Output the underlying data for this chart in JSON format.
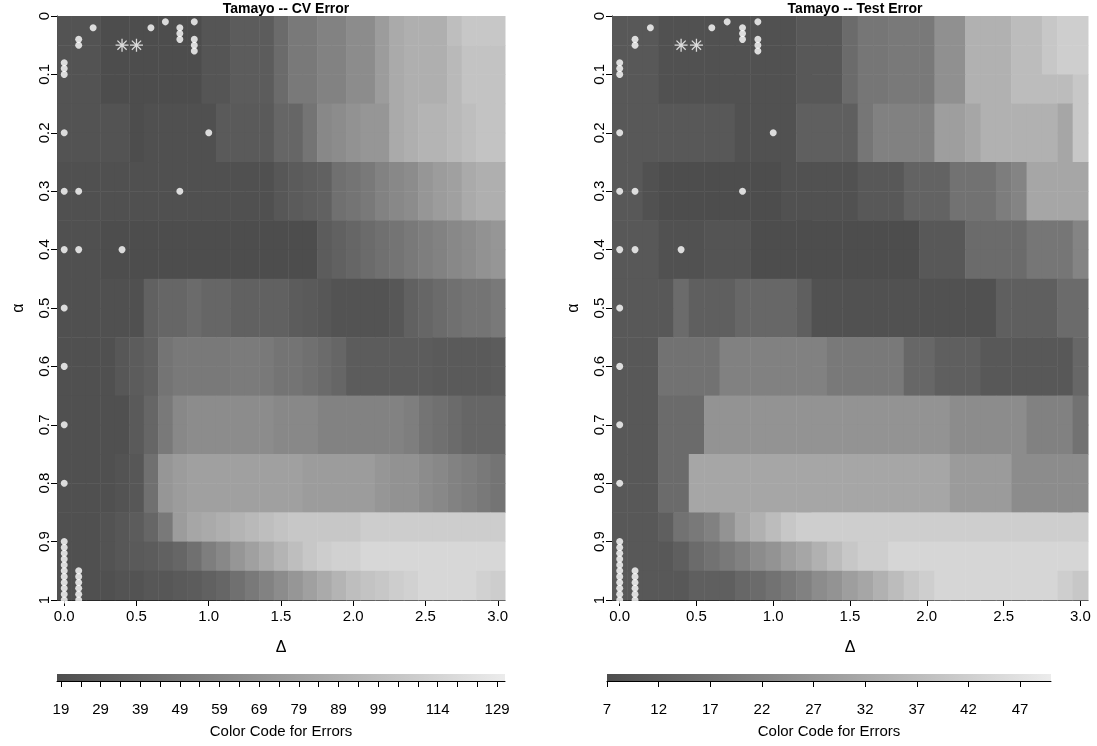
{
  "chart_data": [
    {
      "type": "heatmap",
      "title": "Tamayo -- CV Error",
      "xlabel": "Δ",
      "ylabel": "α",
      "clabel": "Color Code for Errors",
      "x": [
        0,
        0.1,
        0.2,
        0.3,
        0.4,
        0.5,
        0.6,
        0.7,
        0.8,
        0.9,
        1,
        1.1,
        1.2,
        1.3,
        1.4,
        1.5,
        1.6,
        1.7,
        1.8,
        1.9,
        2,
        2.1,
        2.2,
        2.3,
        2.4,
        2.5,
        2.6,
        2.7,
        2.8,
        2.9,
        3
      ],
      "xlim": [
        -0.05,
        3.05
      ],
      "xticks": [
        {
          "value": 0,
          "label": "0.0"
        },
        {
          "value": 0.5,
          "label": "0.5"
        },
        {
          "value": 1,
          "label": "1.0"
        },
        {
          "value": 1.5,
          "label": "1.5"
        },
        {
          "value": 2,
          "label": "2.0"
        },
        {
          "value": 2.5,
          "label": "2.5"
        },
        {
          "value": 3,
          "label": "3.0"
        }
      ],
      "ylim": [
        1,
        0
      ],
      "yticks": [
        0,
        0.1,
        0.2,
        0.3,
        0.4,
        0.5,
        0.6,
        0.7,
        0.8,
        0.9,
        1
      ],
      "clim": [
        18,
        131
      ],
      "cticks": [
        19,
        {
          "value": 24,
          "label": null
        },
        29,
        {
          "value": 34,
          "label": null
        },
        39,
        {
          "value": 44,
          "label": null
        },
        49,
        {
          "value": 54,
          "label": null
        },
        59,
        {
          "value": 64,
          "label": null
        },
        69,
        {
          "value": 74,
          "label": null
        },
        79,
        {
          "value": 84,
          "label": null
        },
        89,
        {
          "value": 94,
          "label": null
        },
        99,
        {
          "value": 104,
          "label": null
        },
        {
          "value": 109,
          "label": null
        },
        114,
        {
          "value": 119,
          "label": null
        },
        {
          "value": 124,
          "label": null
        },
        129
      ],
      "cells": [
        [
          22,
          22,
          22,
          18,
          18,
          18,
          18,
          18,
          18,
          18,
          24,
          24,
          29,
          29,
          29,
          39,
          49,
          49,
          56,
          56,
          63,
          63,
          74,
          84,
          88,
          88,
          88,
          98,
          105,
          105,
          105
        ],
        [
          22,
          22,
          22,
          18,
          18,
          18,
          18,
          18,
          18,
          18,
          24,
          24,
          29,
          29,
          29,
          39,
          49,
          49,
          56,
          56,
          63,
          63,
          74,
          84,
          88,
          88,
          88,
          95,
          102,
          102,
          102
        ],
        [
          22,
          22,
          22,
          18,
          18,
          18,
          18,
          18,
          18,
          18,
          24,
          24,
          29,
          29,
          29,
          39,
          49,
          49,
          56,
          56,
          63,
          63,
          74,
          84,
          88,
          88,
          88,
          95,
          102,
          102,
          102
        ],
        [
          22,
          22,
          22,
          22,
          22,
          18,
          20,
          20,
          20,
          20,
          20,
          27,
          27,
          27,
          27,
          36,
          36,
          46,
          60,
          63,
          67,
          70,
          70,
          84,
          88,
          91,
          91,
          95,
          98,
          102,
          102
        ],
        [
          22,
          22,
          22,
          22,
          22,
          18,
          20,
          20,
          20,
          20,
          20,
          27,
          27,
          27,
          27,
          36,
          36,
          46,
          60,
          63,
          67,
          70,
          70,
          84,
          88,
          91,
          91,
          95,
          98,
          102,
          102
        ],
        [
          20,
          20,
          20,
          20,
          20,
          20,
          20,
          20,
          20,
          20,
          20,
          20,
          20,
          20,
          20,
          25,
          28,
          30,
          32,
          43,
          46,
          49,
          56,
          60,
          63,
          70,
          74,
          77,
          84,
          88,
          88
        ],
        [
          20,
          20,
          20,
          20,
          20,
          20,
          20,
          20,
          20,
          20,
          20,
          20,
          20,
          20,
          20,
          25,
          28,
          30,
          32,
          43,
          46,
          49,
          56,
          60,
          63,
          70,
          74,
          77,
          84,
          88,
          88
        ],
        [
          20,
          20,
          20,
          18,
          18,
          18,
          18,
          18,
          18,
          18,
          18,
          18,
          18,
          18,
          18,
          18,
          18,
          18,
          29,
          32,
          36,
          39,
          43,
          46,
          49,
          53,
          56,
          60,
          63,
          67,
          70
        ],
        [
          20,
          20,
          20,
          18,
          18,
          18,
          18,
          18,
          18,
          18,
          18,
          18,
          18,
          18,
          18,
          18,
          18,
          18,
          29,
          32,
          36,
          39,
          43,
          46,
          49,
          53,
          56,
          60,
          63,
          67,
          70
        ],
        [
          20,
          20,
          20,
          20,
          20,
          20,
          32,
          36,
          36,
          39,
          36,
          36,
          32,
          32,
          32,
          32,
          29,
          27,
          25,
          22,
          22,
          22,
          22,
          25,
          32,
          36,
          39,
          43,
          46,
          46,
          49
        ],
        [
          20,
          20,
          20,
          20,
          20,
          20,
          32,
          36,
          36,
          39,
          36,
          36,
          32,
          32,
          32,
          32,
          29,
          27,
          25,
          22,
          22,
          22,
          22,
          25,
          32,
          36,
          39,
          43,
          46,
          46,
          49
        ],
        [
          20,
          20,
          20,
          20,
          25,
          29,
          32,
          46,
          49,
          49,
          49,
          49,
          51,
          51,
          49,
          46,
          46,
          43,
          39,
          36,
          29,
          29,
          29,
          29,
          29,
          29,
          27,
          27,
          27,
          27,
          29
        ],
        [
          20,
          20,
          20,
          20,
          25,
          29,
          32,
          46,
          49,
          49,
          49,
          49,
          51,
          51,
          49,
          46,
          46,
          43,
          39,
          36,
          29,
          29,
          29,
          29,
          29,
          29,
          27,
          27,
          27,
          27,
          29
        ],
        [
          20,
          20,
          20,
          20,
          20,
          27,
          36,
          49,
          60,
          63,
          63,
          63,
          63,
          63,
          63,
          60,
          60,
          60,
          56,
          56,
          56,
          56,
          56,
          56,
          53,
          46,
          43,
          39,
          36,
          36,
          36
        ],
        [
          20,
          20,
          20,
          20,
          20,
          27,
          36,
          49,
          60,
          63,
          63,
          63,
          63,
          63,
          63,
          60,
          60,
          60,
          56,
          56,
          56,
          56,
          56,
          56,
          53,
          46,
          43,
          39,
          36,
          36,
          36
        ],
        [
          20,
          20,
          20,
          20,
          22,
          25,
          43,
          70,
          74,
          77,
          77,
          77,
          77,
          77,
          77,
          77,
          77,
          74,
          74,
          74,
          74,
          74,
          70,
          67,
          67,
          63,
          60,
          56,
          53,
          49,
          46
        ],
        [
          20,
          20,
          20,
          20,
          22,
          25,
          43,
          70,
          74,
          77,
          77,
          77,
          77,
          77,
          77,
          77,
          77,
          74,
          74,
          74,
          74,
          74,
          70,
          67,
          67,
          63,
          60,
          56,
          53,
          49,
          46
        ],
        [
          20,
          20,
          20,
          22,
          25,
          29,
          36,
          49,
          74,
          81,
          84,
          88,
          91,
          95,
          98,
          102,
          105,
          105,
          105,
          105,
          105,
          109,
          109,
          109,
          109,
          109,
          109,
          109,
          109,
          109,
          109
        ],
        [
          20,
          20,
          20,
          22,
          25,
          27,
          29,
          32,
          36,
          43,
          53,
          60,
          70,
          77,
          84,
          91,
          98,
          105,
          109,
          112,
          112,
          116,
          116,
          116,
          116,
          116,
          116,
          116,
          116,
          116,
          116
        ],
        [
          20,
          20,
          20,
          20,
          22,
          22,
          25,
          25,
          27,
          29,
          32,
          36,
          43,
          49,
          56,
          63,
          70,
          77,
          84,
          91,
          98,
          102,
          105,
          109,
          112,
          116,
          116,
          116,
          116,
          112,
          109
        ]
      ],
      "series": [
        {
          "type": "scatter",
          "color": "#ffffff",
          "marker": "circle",
          "x": [
            0,
            0,
            0,
            0.1,
            0.1,
            0.2,
            0.6,
            0.7,
            0.8,
            0.8,
            0.8,
            0.9,
            0.9,
            0.9,
            0.9,
            0,
            1,
            0,
            0.1,
            0.8,
            0,
            0.1,
            0.4,
            0,
            0,
            0,
            0,
            0,
            0,
            0,
            0,
            0,
            0,
            0,
            0,
            0,
            0,
            0,
            0.1,
            0.1,
            0.1,
            0.1,
            0.1,
            0.1
          ],
          "values": [
            0.08,
            0.09,
            0.1,
            0.04,
            0.05,
            0.02,
            0.02,
            0.01,
            0.02,
            0.03,
            0.04,
            0.01,
            0.04,
            0.05,
            0.06,
            0.2,
            0.2,
            0.3,
            0.3,
            0.3,
            0.4,
            0.4,
            0.4,
            0.5,
            0.6,
            0.7,
            0.8,
            0.9,
            0.91,
            0.92,
            0.93,
            0.94,
            0.95,
            0.96,
            0.97,
            0.98,
            0.99,
            1,
            0.95,
            0.96,
            0.97,
            0.98,
            0.99,
            1
          ]
        },
        {
          "type": "scatter",
          "color": "#ffffff",
          "marker": "star",
          "x": [
            0.4,
            0.5
          ],
          "values": [
            0.05,
            0.05
          ]
        }
      ]
    },
    {
      "type": "heatmap",
      "title": "Tamayo -- Test Error",
      "xlabel": "Δ",
      "ylabel": "α",
      "clabel": "Color Code for Errors",
      "x": [
        0,
        0.1,
        0.2,
        0.3,
        0.4,
        0.5,
        0.6,
        0.7,
        0.8,
        0.9,
        1,
        1.1,
        1.2,
        1.3,
        1.4,
        1.5,
        1.6,
        1.7,
        1.8,
        1.9,
        2,
        2.1,
        2.2,
        2.3,
        2.4,
        2.5,
        2.6,
        2.7,
        2.8,
        2.9,
        3
      ],
      "xlim": [
        -0.05,
        3.05
      ],
      "xticks": [
        {
          "value": 0,
          "label": "0.0"
        },
        {
          "value": 0.5,
          "label": "0.5"
        },
        {
          "value": 1,
          "label": "1.0"
        },
        {
          "value": 1.5,
          "label": "1.5"
        },
        {
          "value": 2,
          "label": "2.0"
        },
        {
          "value": 2.5,
          "label": "2.5"
        },
        {
          "value": 3,
          "label": "3.0"
        }
      ],
      "ylim": [
        1,
        0
      ],
      "yticks": [
        0,
        0.1,
        0.2,
        0.3,
        0.4,
        0.5,
        0.6,
        0.7,
        0.8,
        0.9,
        1
      ],
      "clim": [
        7,
        50
      ],
      "cticks": [
        7,
        12,
        17,
        22,
        27,
        32,
        37,
        42,
        47
      ],
      "cells": [
        [
          10,
          10,
          10,
          8,
          8,
          8,
          8,
          8,
          8,
          8,
          8,
          8,
          10,
          10,
          10,
          15,
          18,
          18,
          19,
          19,
          19,
          25,
          25,
          34,
          34,
          34,
          37,
          37,
          40,
          42,
          42
        ],
        [
          10,
          10,
          10,
          8,
          8,
          8,
          8,
          8,
          8,
          8,
          8,
          8,
          10,
          10,
          10,
          15,
          18,
          18,
          19,
          19,
          19,
          25,
          25,
          34,
          34,
          34,
          37,
          37,
          40,
          42,
          42
        ],
        [
          10,
          10,
          10,
          8,
          8,
          8,
          8,
          8,
          8,
          8,
          8,
          8,
          10,
          10,
          10,
          15,
          18,
          18,
          19,
          19,
          19,
          25,
          25,
          34,
          34,
          34,
          37,
          37,
          37,
          37,
          40
        ],
        [
          10,
          10,
          10,
          10,
          10,
          10,
          10,
          10,
          8,
          8,
          8,
          8,
          12,
          12,
          12,
          12,
          18,
          21,
          21,
          21,
          21,
          29,
          29,
          31,
          34,
          34,
          34,
          34,
          34,
          31,
          40
        ],
        [
          10,
          10,
          10,
          10,
          10,
          10,
          10,
          10,
          8,
          8,
          8,
          8,
          12,
          12,
          12,
          12,
          18,
          21,
          21,
          21,
          21,
          29,
          29,
          31,
          34,
          34,
          34,
          34,
          34,
          31,
          40
        ],
        [
          10,
          10,
          8,
          7,
          7,
          7,
          7,
          7,
          7,
          7,
          7,
          8,
          8,
          8,
          8,
          8,
          10,
          10,
          10,
          13,
          13,
          13,
          17,
          17,
          17,
          20,
          22,
          31,
          31,
          31,
          31
        ],
        [
          10,
          10,
          8,
          7,
          7,
          7,
          7,
          7,
          7,
          7,
          7,
          8,
          8,
          8,
          8,
          8,
          10,
          10,
          10,
          13,
          13,
          13,
          17,
          17,
          17,
          20,
          22,
          31,
          31,
          31,
          31
        ],
        [
          10,
          10,
          10,
          8,
          8,
          8,
          9,
          9,
          9,
          7,
          7,
          7,
          7,
          7,
          7,
          7,
          7,
          7,
          7,
          7,
          10,
          10,
          10,
          15,
          15,
          15,
          15,
          18,
          18,
          18,
          22
        ],
        [
          10,
          10,
          10,
          8,
          8,
          8,
          9,
          9,
          9,
          7,
          7,
          7,
          7,
          7,
          7,
          7,
          7,
          7,
          7,
          7,
          10,
          10,
          10,
          15,
          15,
          15,
          15,
          18,
          18,
          18,
          22
        ],
        [
          10,
          10,
          10,
          10,
          15,
          12,
          12,
          12,
          14,
          14,
          14,
          14,
          12,
          8,
          8,
          8,
          8,
          8,
          8,
          8,
          8,
          8,
          8,
          8,
          8,
          12,
          12,
          12,
          12,
          15,
          15
        ],
        [
          10,
          10,
          10,
          10,
          15,
          12,
          12,
          12,
          14,
          14,
          14,
          14,
          12,
          8,
          8,
          8,
          8,
          8,
          8,
          8,
          8,
          8,
          8,
          8,
          8,
          12,
          12,
          12,
          12,
          15,
          15
        ],
        [
          10,
          10,
          10,
          17,
          17,
          17,
          17,
          21,
          21,
          21,
          21,
          21,
          21,
          21,
          19,
          19,
          19,
          19,
          19,
          14,
          14,
          12,
          12,
          12,
          10,
          10,
          10,
          10,
          10,
          10,
          14
        ],
        [
          10,
          10,
          10,
          17,
          17,
          17,
          17,
          21,
          21,
          21,
          21,
          21,
          21,
          21,
          19,
          19,
          19,
          19,
          19,
          14,
          14,
          12,
          12,
          12,
          10,
          10,
          10,
          10,
          10,
          10,
          14
        ],
        [
          10,
          10,
          10,
          15,
          15,
          15,
          26,
          26,
          26,
          26,
          26,
          26,
          26,
          26,
          26,
          26,
          26,
          26,
          26,
          26,
          26,
          26,
          24,
          24,
          24,
          24,
          24,
          21,
          21,
          21,
          17
        ],
        [
          10,
          10,
          10,
          15,
          15,
          15,
          26,
          26,
          26,
          26,
          26,
          26,
          26,
          26,
          26,
          26,
          26,
          26,
          26,
          26,
          26,
          26,
          24,
          24,
          24,
          24,
          24,
          21,
          21,
          21,
          17
        ],
        [
          10,
          10,
          10,
          15,
          15,
          31,
          31,
          31,
          31,
          31,
          31,
          31,
          31,
          31,
          31,
          31,
          31,
          31,
          31,
          31,
          31,
          31,
          28,
          28,
          28,
          28,
          24,
          24,
          24,
          24,
          24
        ],
        [
          10,
          10,
          10,
          15,
          15,
          31,
          31,
          31,
          31,
          31,
          31,
          31,
          31,
          31,
          31,
          31,
          31,
          31,
          31,
          31,
          31,
          31,
          28,
          28,
          28,
          28,
          24,
          24,
          24,
          24,
          24
        ],
        [
          10,
          10,
          10,
          12,
          17,
          19,
          21,
          26,
          31,
          34,
          37,
          40,
          42,
          42,
          42,
          42,
          42,
          42,
          42,
          42,
          42,
          42,
          42,
          42,
          42,
          42,
          42,
          42,
          42,
          42,
          42
        ],
        [
          10,
          10,
          10,
          10,
          12,
          15,
          17,
          19,
          21,
          24,
          26,
          29,
          31,
          34,
          37,
          40,
          42,
          42,
          44,
          44,
          44,
          44,
          44,
          44,
          44,
          44,
          44,
          44,
          44,
          44,
          44
        ],
        [
          10,
          10,
          10,
          10,
          10,
          12,
          12,
          12,
          14,
          15,
          17,
          19,
          21,
          24,
          26,
          29,
          31,
          34,
          37,
          40,
          42,
          44,
          44,
          44,
          44,
          44,
          44,
          44,
          44,
          42,
          40
        ]
      ],
      "series": [
        {
          "type": "scatter",
          "color": "#ffffff",
          "marker": "circle",
          "x": [
            0,
            0,
            0,
            0.1,
            0.1,
            0.2,
            0.6,
            0.7,
            0.8,
            0.8,
            0.8,
            0.9,
            0.9,
            0.9,
            0.9,
            0,
            1,
            0,
            0.1,
            0.8,
            0,
            0.1,
            0.4,
            0,
            0,
            0,
            0,
            0,
            0,
            0,
            0,
            0,
            0,
            0,
            0,
            0,
            0,
            0,
            0.1,
            0.1,
            0.1,
            0.1,
            0.1,
            0.1
          ],
          "values": [
            0.08,
            0.09,
            0.1,
            0.04,
            0.05,
            0.02,
            0.02,
            0.01,
            0.02,
            0.03,
            0.04,
            0.01,
            0.04,
            0.05,
            0.06,
            0.2,
            0.2,
            0.3,
            0.3,
            0.3,
            0.4,
            0.4,
            0.4,
            0.5,
            0.6,
            0.7,
            0.8,
            0.9,
            0.91,
            0.92,
            0.93,
            0.94,
            0.95,
            0.96,
            0.97,
            0.98,
            0.99,
            1,
            0.95,
            0.96,
            0.97,
            0.98,
            0.99,
            1
          ]
        },
        {
          "type": "scatter",
          "color": "#ffffff",
          "marker": "star",
          "x": [
            0.4,
            0.5
          ],
          "values": [
            0.05,
            0.05
          ]
        }
      ]
    }
  ]
}
